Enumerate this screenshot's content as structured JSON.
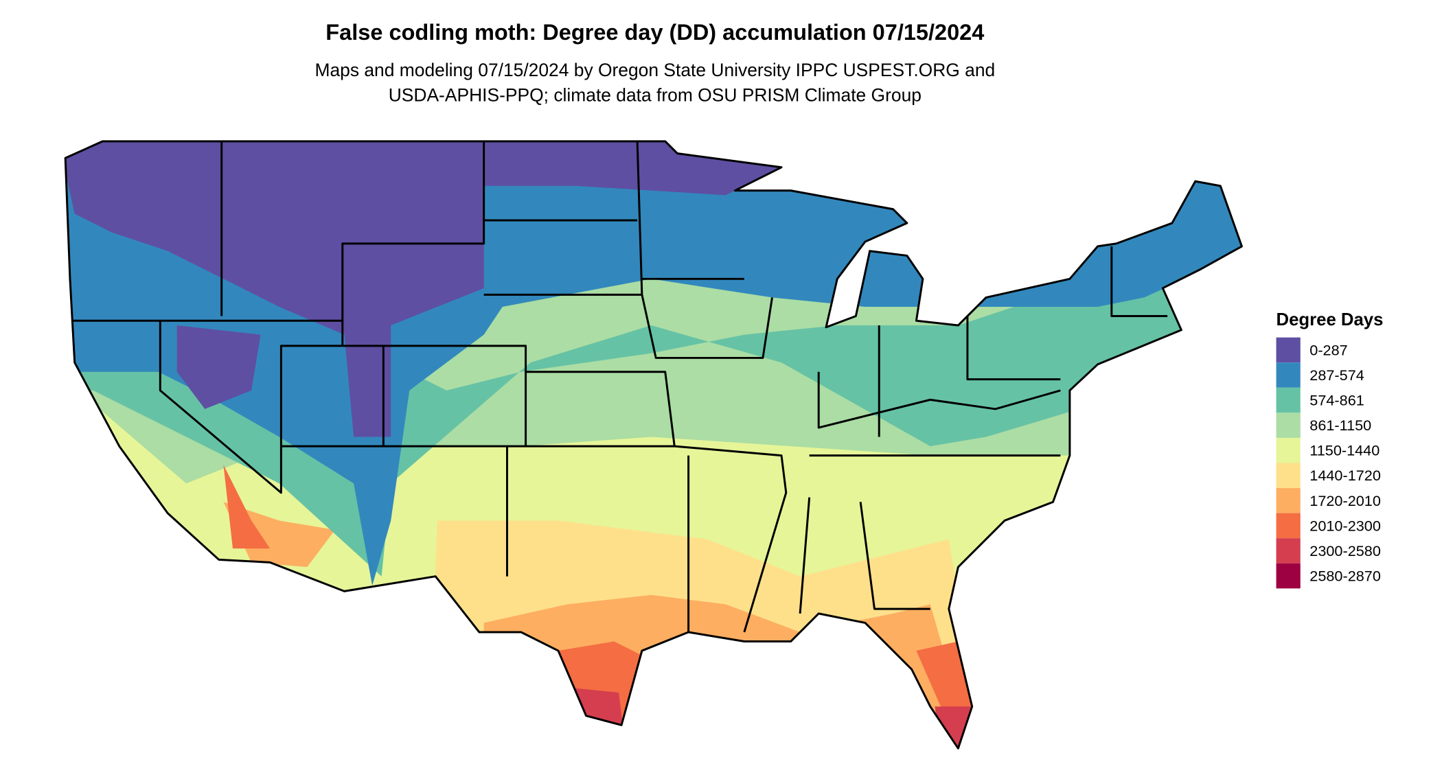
{
  "title": "False codling moth: Degree day (DD) accumulation 07/15/2024",
  "subtitle_lines": [
    "Maps and modeling 07/15/2024 by Oregon State University IPPC USPEST.ORG and",
    "USDA-APHIS-PPQ; climate data from OSU PRISM Climate Group"
  ],
  "legend": {
    "title": "Degree Days",
    "bins": [
      {
        "label": "0-287",
        "color": "#5E4FA2"
      },
      {
        "label": "287-574",
        "color": "#3288BD"
      },
      {
        "label": "574-861",
        "color": "#66C2A5"
      },
      {
        "label": "861-1150",
        "color": "#ABDDA4"
      },
      {
        "label": "1150-1440",
        "color": "#E6F598"
      },
      {
        "label": "1440-1720",
        "color": "#FEE08B"
      },
      {
        "label": "1720-2010",
        "color": "#FDAE61"
      },
      {
        "label": "2010-2300",
        "color": "#F46D43"
      },
      {
        "label": "2300-2580",
        "color": "#D53E4F"
      },
      {
        "label": "2580-2870",
        "color": "#9E0142"
      }
    ]
  }
}
